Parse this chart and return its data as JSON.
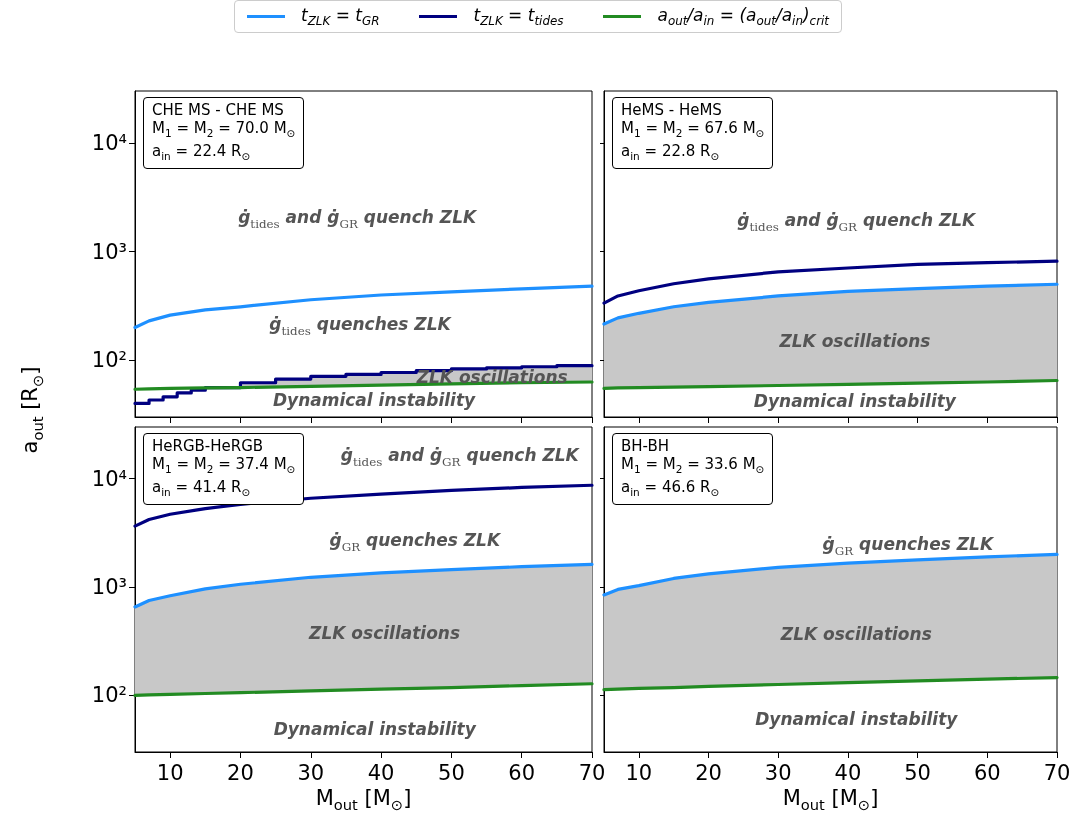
{
  "chart_data": [
    {
      "type": "line",
      "ylabel": "a$_{out}$ [R$_{⊙}$]",
      "x": [
        5,
        7,
        10,
        15,
        20,
        30,
        40,
        50,
        60,
        70
      ],
      "xlim": [
        5,
        70
      ],
      "xticks": [
        10,
        20,
        30,
        40,
        50,
        60,
        70
      ],
      "ylim": [
        30,
        30000
      ],
      "log": "y",
      "yticks": [
        {
          "value": 100,
          "label": "10²"
        },
        {
          "value": 1000,
          "label": "10³"
        },
        {
          "value": 10000,
          "label": "10⁴"
        }
      ],
      "tick_labels": "y",
      "legend": "top",
      "series": [
        {
          "name": "t$_{ZLK}$ = t$_{GR}$",
          "color": "#1e90ff",
          "values": [
            200,
            230,
            260,
            290,
            310,
            360,
            398,
            425,
            453,
            480
          ]
        },
        {
          "name": "t$_{ZLK}$ = t$_{tides}$",
          "type": "step",
          "color": "#000080",
          "x": [
            5,
            7,
            9,
            11,
            13,
            15,
            20,
            25,
            30,
            35,
            40,
            45,
            50,
            55,
            60,
            65,
            70
          ],
          "values": [
            40,
            43,
            46,
            50,
            53,
            56,
            62,
            67,
            71,
            74,
            77,
            80,
            83,
            85,
            87,
            89,
            90
          ],
          "lower": [
            null,
            null,
            null,
            null,
            null,
            55.5,
            56,
            57,
            57.5,
            58,
            59,
            59.5,
            60.5,
            61,
            62,
            62.5,
            63
          ],
          "upper": [
            null,
            null,
            null,
            null,
            null,
            56,
            62,
            67,
            71,
            74,
            77,
            80,
            83,
            85,
            87,
            89,
            90
          ]
        },
        {
          "name": "a$_{out}$/a$_{in}$ = (a$_{out}$/a$_{in}$)$_{crit}$",
          "color": "#228b22",
          "values": [
            54,
            54.5,
            55,
            55.5,
            56,
            57.5,
            59,
            60.5,
            62,
            63
          ]
        }
      ],
      "annotations": [
        "CHE MS - CHE MS",
        "M$_{1}$ = M$_{2}$ = 70.0 M$_{⊙}$",
        "a$_{in}$ = 22.4 R$_{⊙}$",
        "ġ$_{tides}$ and ġ$_{GR}$ quench ZLK",
        "ġ$_{tides}$ quenches ZLK",
        "ZLK oscillations",
        "Dynamical instability"
      ]
    },
    {
      "type": "line",
      "x": [
        5,
        7,
        10,
        15,
        20,
        30,
        40,
        50,
        60,
        70
      ],
      "xlim": [
        5,
        70
      ],
      "xticks": [
        10,
        20,
        30,
        40,
        50,
        60,
        70
      ],
      "ylim": [
        30,
        30000
      ],
      "log": "y",
      "yticks": [
        {
          "value": 100,
          "label": null
        },
        {
          "value": 1000,
          "label": null
        },
        {
          "value": 10000,
          "label": null
        }
      ],
      "tick_labels": false,
      "series": [
        {
          "color": "#1e90ff",
          "values": [
            215,
            245,
            270,
            310,
            340,
            390,
            430,
            455,
            480,
            500
          ],
          "lower": [
            55,
            55.5,
            56,
            56.5,
            57,
            58.5,
            60,
            61.5,
            63,
            65
          ],
          "upper": [
            215,
            245,
            270,
            310,
            340,
            390,
            430,
            455,
            480,
            500
          ]
        },
        {
          "color": "#000080",
          "values": [
            335,
            390,
            435,
            505,
            560,
            650,
            705,
            760,
            790,
            815
          ]
        },
        {
          "color": "#228b22",
          "values": [
            55,
            55.5,
            56,
            56.5,
            57,
            58.5,
            60,
            61.5,
            63,
            65
          ]
        }
      ],
      "annotations": [
        "HeMS - HeMS",
        "M$_{1}$ = M$_{2}$ = 67.6 M$_{⊙}$",
        "a$_{in}$ = 22.8 R$_{⊙}$",
        "ġ$_{tides}$ and ġ$_{GR}$ quench ZLK",
        "ZLK oscillations",
        "Dynamical instability"
      ]
    },
    {
      "type": "line",
      "xlabel": "M$_{out}$ [M$_{⊙}$]",
      "x": [
        5,
        7,
        10,
        15,
        20,
        30,
        40,
        50,
        60,
        70
      ],
      "xlim": [
        5,
        70
      ],
      "xticks": [
        10,
        20,
        30,
        40,
        50,
        60,
        70
      ],
      "ylim": [
        30,
        30000
      ],
      "log": "y",
      "yticks": [
        {
          "value": 100,
          "label": "10²"
        },
        {
          "value": 1000,
          "label": "10³"
        },
        {
          "value": 10000,
          "label": "10⁴"
        }
      ],
      "series": [
        {
          "color": "#1e90ff",
          "values": [
            655,
            750,
            830,
            960,
            1060,
            1230,
            1350,
            1450,
            1540,
            1620
          ],
          "lower": [
            100,
            101,
            102,
            104,
            106,
            110,
            114,
            118,
            123,
            128
          ],
          "upper": [
            655,
            750,
            830,
            960,
            1060,
            1230,
            1350,
            1450,
            1540,
            1620
          ]
        },
        {
          "color": "#000080",
          "values": [
            3650,
            4200,
            4700,
            5300,
            5800,
            6600,
            7200,
            7800,
            8300,
            8700
          ]
        },
        {
          "color": "#228b22",
          "values": [
            100,
            101,
            102,
            104,
            106,
            110,
            114,
            118,
            123,
            128
          ]
        }
      ],
      "annotations": [
        "HeRGB-HeRGB",
        "M$_{1}$ = M$_{2}$ = 37.4 M$_{⊙}$",
        "a$_{in}$ = 41.4 R$_{⊙}$",
        "ġ$_{tides}$ and ġ$_{GR}$ quench ZLK",
        "ġ$_{GR}$ quenches ZLK",
        "ZLK oscillations",
        "Dynamical instability"
      ]
    },
    {
      "type": "line",
      "xlabel": "M$_{out}$ [M$_{⊙}$]",
      "x": [
        5,
        7,
        10,
        15,
        20,
        30,
        40,
        50,
        60,
        70
      ],
      "xlim": [
        5,
        70
      ],
      "xticks": [
        10,
        20,
        30,
        40,
        50,
        60,
        70
      ],
      "ylim": [
        30,
        30000
      ],
      "log": "y",
      "yticks": [
        {
          "value": 100,
          "label": null
        },
        {
          "value": 1000,
          "label": null
        },
        {
          "value": 10000,
          "label": null
        }
      ],
      "tick_labels": "x",
      "series": [
        {
          "color": "#1e90ff",
          "values": [
            845,
            950,
            1030,
            1200,
            1320,
            1520,
            1660,
            1780,
            1900,
            2000
          ],
          "lower": [
            113,
            114,
            116,
            118,
            121,
            126,
            131,
            136,
            141,
            146
          ],
          "upper": [
            845,
            950,
            1030,
            1200,
            1320,
            1520,
            1660,
            1780,
            1900,
            2000
          ]
        },
        {
          "color": "#228b22",
          "values": [
            113,
            114,
            116,
            118,
            121,
            126,
            131,
            136,
            141,
            146
          ]
        }
      ],
      "annotations": [
        "BH-BH",
        "M$_{1}$ = M$_{2}$ = 33.6 M$_{⊙}$",
        "a$_{in}$ = 46.6 R$_{⊙}$",
        "ġ$_{GR}$ quenches ZLK",
        "ZLK oscillations",
        "Dynamical instability"
      ]
    }
  ]
}
